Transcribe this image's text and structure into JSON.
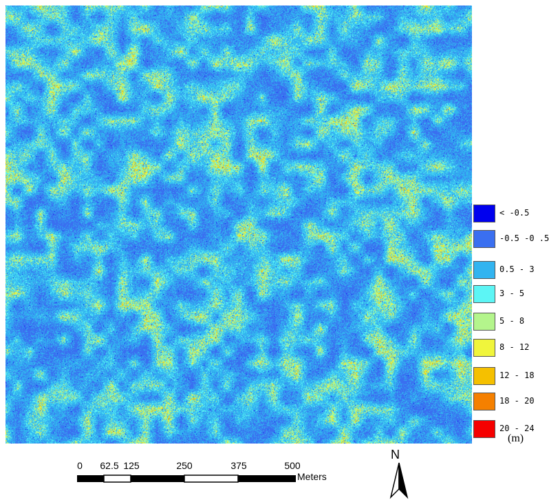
{
  "legend": {
    "unit": "(m)",
    "items": [
      {
        "label": "< -0.5",
        "color": "#0000ee"
      },
      {
        "label": "-0.5 -0 .5",
        "color": "#3a6ff0"
      },
      {
        "label": "0.5 - 3",
        "color": "#32b4f0"
      },
      {
        "label": "3 - 5",
        "color": "#5cf5f5"
      },
      {
        "label": "5 - 8",
        "color": "#b4f58c"
      },
      {
        "label": "8 - 12",
        "color": "#f0f53c"
      },
      {
        "label": "12 - 18",
        "color": "#f5c000"
      },
      {
        "label": "18 - 20",
        "color": "#f58000"
      },
      {
        "label": "20 - 24",
        "color": "#f50000"
      }
    ]
  },
  "scale_bar": {
    "ticks": [
      "0",
      "62.5",
      "125",
      "250",
      "375",
      "500"
    ],
    "units": "Meters"
  },
  "north_arrow": {
    "label": "N",
    "icon": "north-arrow-icon"
  }
}
